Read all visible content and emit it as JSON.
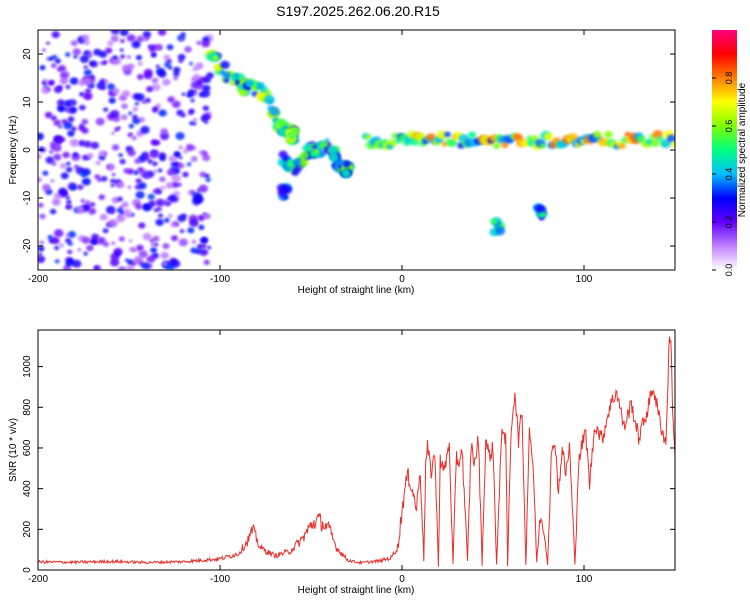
{
  "title": "S197.2025.262.06.20.R15",
  "chart_data": [
    {
      "type": "heatmap",
      "xlabel": "Height of straight line (km)",
      "ylabel": "Frequency (Hz)",
      "xlim": [
        -200,
        150
      ],
      "ylim": [
        -25,
        25
      ],
      "xticks": [
        -200,
        -100,
        0,
        100
      ],
      "yticks": [
        -20,
        -10,
        0,
        10,
        20
      ],
      "colorbar": {
        "label": "Normalized spectral amplitude",
        "range": [
          0,
          1
        ],
        "ticks": [
          "0.0",
          "0.2",
          "0.4",
          "0.6",
          "0.8"
        ],
        "colors": [
          "#ffffff",
          "#c080ff",
          "#6000ff",
          "#0000ff",
          "#00c0ff",
          "#00ff80",
          "#80ff00",
          "#ffff00",
          "#ff8000",
          "#ff0000",
          "#ff0080"
        ]
      },
      "features": [
        {
          "name": "noise-region",
          "x_range": [
            -200,
            -105
          ],
          "f_range": [
            -25,
            25
          ],
          "amplitude": 0.15
        },
        {
          "name": "descending-track",
          "points": [
            [
              -105,
              20
            ],
            [
              -95,
              15
            ],
            [
              -85,
              13
            ],
            [
              -75,
              12
            ],
            [
              -68,
              5
            ],
            [
              -60,
              3
            ]
          ],
          "amplitude": 0.35
        },
        {
          "name": "ridge-cluster",
          "points": [
            [
              -65,
              -2
            ],
            [
              -60,
              -4
            ],
            [
              -50,
              0
            ],
            [
              -40,
              1
            ],
            [
              -35,
              -3
            ],
            [
              -30,
              -4
            ]
          ],
          "amplitude": 0.3
        },
        {
          "name": "zero-hz-band",
          "x_range": [
            -20,
            150
          ],
          "f_center": 2,
          "amplitude": 0.6
        },
        {
          "name": "low-blob-1",
          "x": 52,
          "f": -16,
          "amplitude": 0.4
        },
        {
          "name": "low-blob-2",
          "x": 76,
          "f": -13,
          "amplitude": 0.35
        },
        {
          "name": "low-blob-3",
          "x": -65,
          "f": -9,
          "amplitude": 0.3
        }
      ]
    },
    {
      "type": "line",
      "xlabel": "Height of straight line (km)",
      "ylabel": "SNR (10 * v/v)",
      "xlim": [
        -200,
        150
      ],
      "ylim": [
        0,
        1180
      ],
      "xticks": [
        -200,
        -100,
        0,
        100
      ],
      "yticks": [
        0,
        200,
        400,
        600,
        800,
        1000
      ],
      "color": "#e8302a",
      "series": {
        "x": [
          -200,
          -180,
          -160,
          -140,
          -120,
          -100,
          -90,
          -85,
          -82,
          -78,
          -70,
          -62,
          -55,
          -50,
          -46,
          -44,
          -40,
          -36,
          -30,
          -26,
          -22,
          -18,
          -12,
          -6,
          -2,
          0,
          3,
          5,
          8,
          10,
          12,
          13,
          14,
          16,
          18,
          20,
          21,
          23,
          26,
          28,
          30,
          31,
          33,
          36,
          38,
          40,
          42,
          44,
          46,
          48,
          50,
          52,
          55,
          57,
          58,
          60,
          62,
          64,
          66,
          68,
          70,
          72,
          74,
          76,
          78,
          80,
          82,
          84,
          86,
          88,
          90,
          92,
          95,
          97,
          99,
          101,
          103,
          106,
          110,
          114,
          118,
          122,
          126,
          130,
          134,
          138,
          142,
          145,
          147,
          148,
          149,
          150
        ],
        "y": [
          40,
          38,
          42,
          37,
          41,
          55,
          80,
          140,
          200,
          110,
          70,
          90,
          150,
          220,
          250,
          230,
          200,
          110,
          50,
          40,
          35,
          40,
          45,
          60,
          120,
          300,
          470,
          420,
          300,
          500,
          50,
          520,
          600,
          480,
          580,
          20,
          550,
          480,
          620,
          30,
          560,
          520,
          600,
          40,
          620,
          520,
          650,
          25,
          640,
          560,
          600,
          30,
          720,
          640,
          20,
          700,
          880,
          640,
          780,
          30,
          700,
          520,
          40,
          260,
          200,
          30,
          540,
          650,
          380,
          600,
          470,
          610,
          30,
          520,
          620,
          680,
          420,
          720,
          640,
          800,
          880,
          700,
          820,
          650,
          760,
          900,
          720,
          620,
          1180,
          1050,
          700,
          560
        ]
      }
    }
  ]
}
